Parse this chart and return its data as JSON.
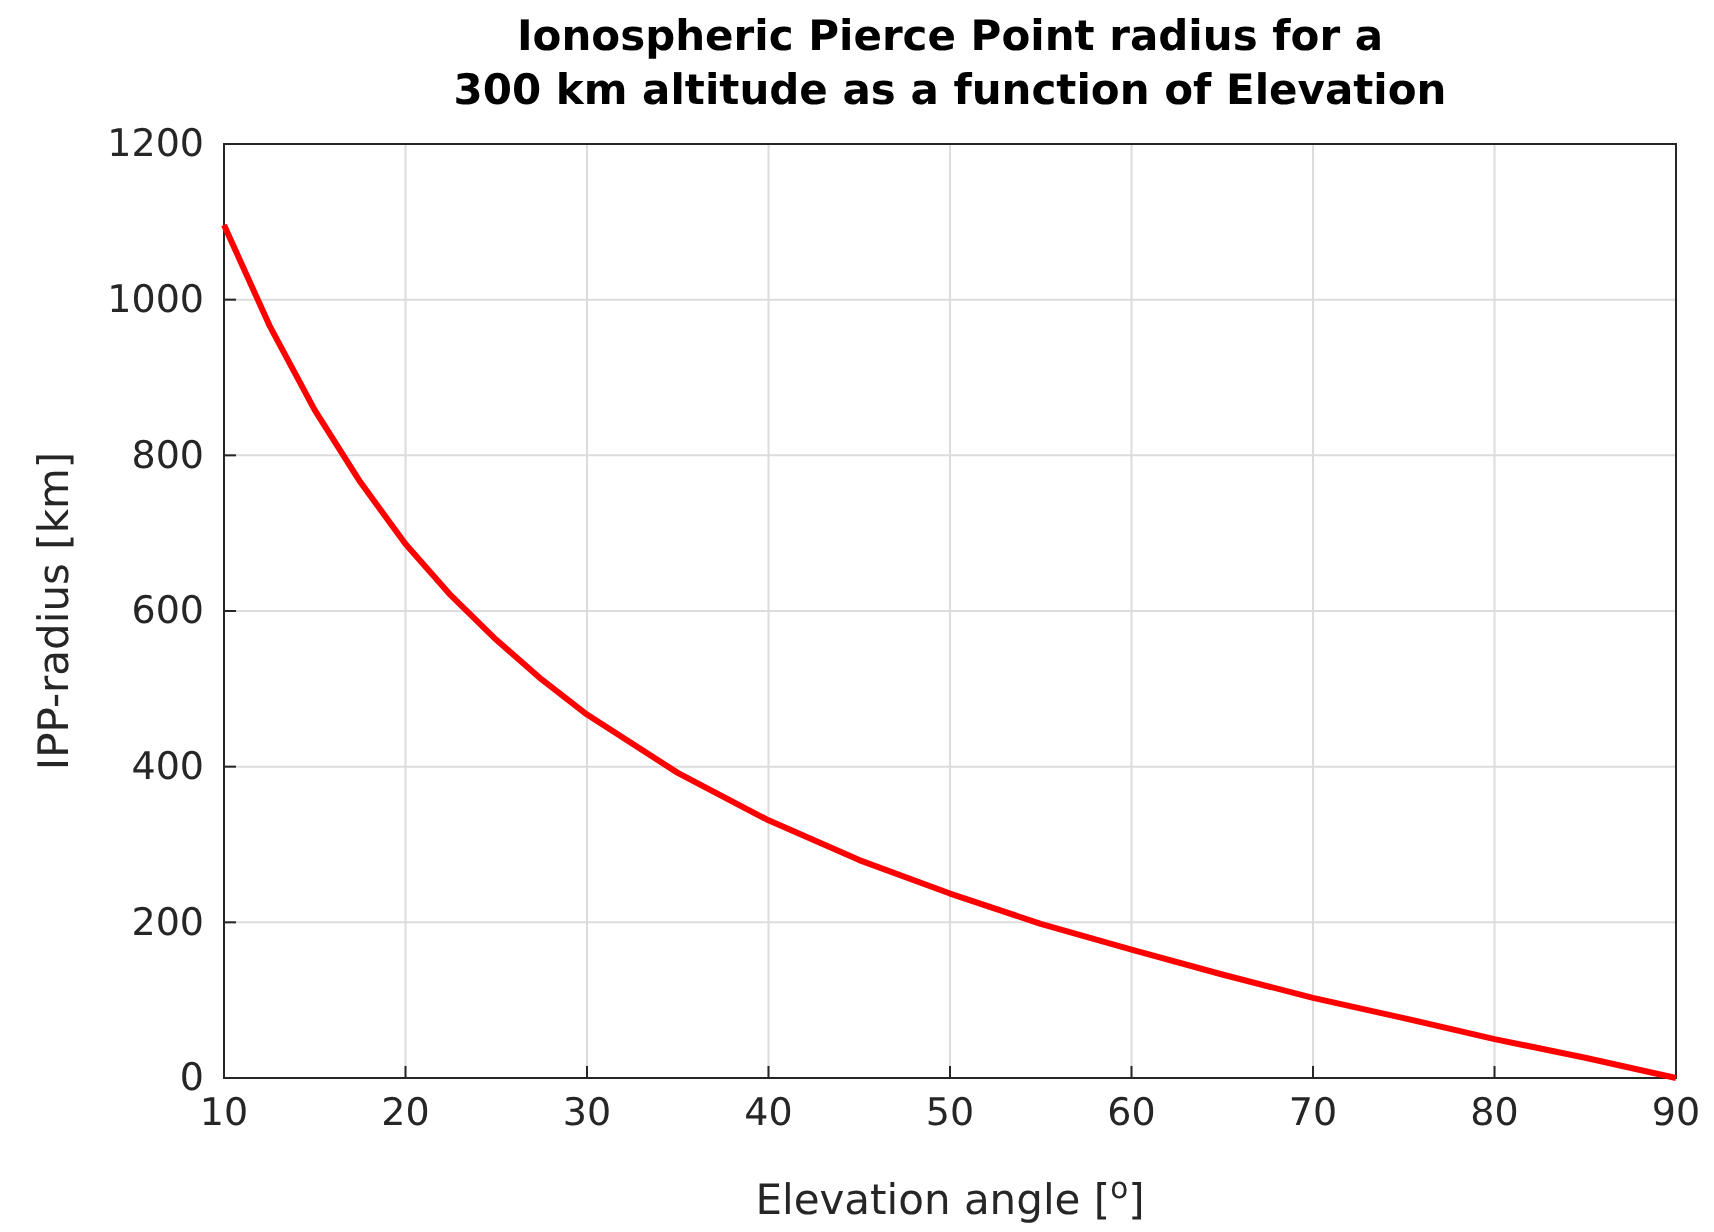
{
  "chart_data": {
    "type": "line",
    "title": "Ionospheric Pierce Point radius for a\n300 km altitude as a function of Elevation",
    "xlabel": "Elevation angle [$^{o}$]",
    "ylabel": "IPP-radius [km]",
    "x": [
      10,
      12.5,
      15,
      17.5,
      20,
      22.5,
      25,
      27.5,
      30,
      35,
      40,
      45,
      50,
      55,
      60,
      65,
      70,
      75,
      80,
      85,
      90
    ],
    "series": [
      {
        "color": "#ff0000",
        "values": [
          1096,
          967,
          858,
          766,
          686,
          620,
          563,
          512,
          467,
          392,
          331,
          280,
          237,
          198,
          165,
          133,
          103,
          77,
          50,
          26,
          0
        ]
      }
    ],
    "xlim": [
      10,
      90
    ],
    "xticks": [
      10,
      20,
      30,
      40,
      50,
      60,
      70,
      80,
      90
    ],
    "ylim": [
      0,
      1200
    ],
    "yticks": [
      0,
      200,
      400,
      600,
      800,
      1000,
      1200
    ],
    "grid": true,
    "line_style": "solid",
    "marker": "none"
  }
}
